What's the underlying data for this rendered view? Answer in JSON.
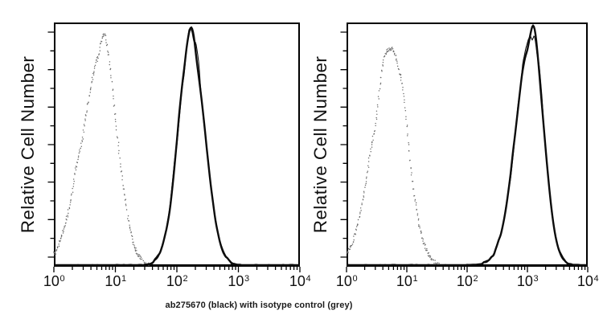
{
  "figure": {
    "caption": "ab275670 (black) with isotype control (grey)",
    "background": "#ffffff",
    "frame_color": "#000000"
  },
  "chart_data": [
    {
      "type": "line",
      "subtype": "flow-cytometry-overlay-histogram",
      "panel": "left",
      "title": "",
      "grid": false,
      "legend": false,
      "x_axis": {
        "scale": "log10",
        "min": 1,
        "max": 10000,
        "label": "",
        "ticks": [
          {
            "base": "10",
            "exp": "0"
          },
          {
            "base": "10",
            "exp": "1"
          },
          {
            "base": "10",
            "exp": "2"
          },
          {
            "base": "10",
            "exp": "3"
          },
          {
            "base": "10",
            "exp": "4"
          }
        ]
      },
      "y_axis": {
        "label": "Relative Cell Number",
        "scale": "linear",
        "tick_labels": []
      },
      "series": [
        {
          "name": "isotype control",
          "render": "dotted",
          "color": "#6b6b6b",
          "peak_x": 6.3,
          "peak_height_relative": 0.94,
          "log_sigma_left": 0.33,
          "log_sigma_right": 0.23,
          "x_range": [
            1,
            40
          ]
        },
        {
          "name": "ab275670",
          "render": "solid",
          "color": "#0d0d0d",
          "peak_x": 170,
          "peak_height_relative": 0.965,
          "log_sigma_left": 0.21,
          "log_sigma_right": 0.22,
          "x_range": [
            45,
            900
          ]
        }
      ]
    },
    {
      "type": "line",
      "subtype": "flow-cytometry-overlay-histogram",
      "panel": "right",
      "title": "",
      "grid": false,
      "legend": false,
      "x_axis": {
        "scale": "log10",
        "min": 1,
        "max": 10000,
        "label": "",
        "ticks": [
          {
            "base": "10",
            "exp": "0"
          },
          {
            "base": "10",
            "exp": "1"
          },
          {
            "base": "10",
            "exp": "2"
          },
          {
            "base": "10",
            "exp": "3"
          },
          {
            "base": "10",
            "exp": "4"
          }
        ]
      },
      "y_axis": {
        "label": "Relative Cell Number",
        "scale": "linear",
        "tick_labels": []
      },
      "series": [
        {
          "name": "isotype control",
          "render": "dotted",
          "color": "#6b6b6b",
          "peak_x": 5.8,
          "peak_height_relative": 0.93,
          "log_sigma_left": 0.31,
          "log_sigma_right": 0.24,
          "x_range": [
            1,
            35
          ]
        },
        {
          "name": "ab275670",
          "render": "solid",
          "color": "#0d0d0d",
          "peak_x": 1200,
          "peak_height_relative": 0.975,
          "log_sigma_left": 0.26,
          "log_sigma_right": 0.19,
          "x_range": [
            180,
            5000
          ]
        }
      ]
    }
  ]
}
